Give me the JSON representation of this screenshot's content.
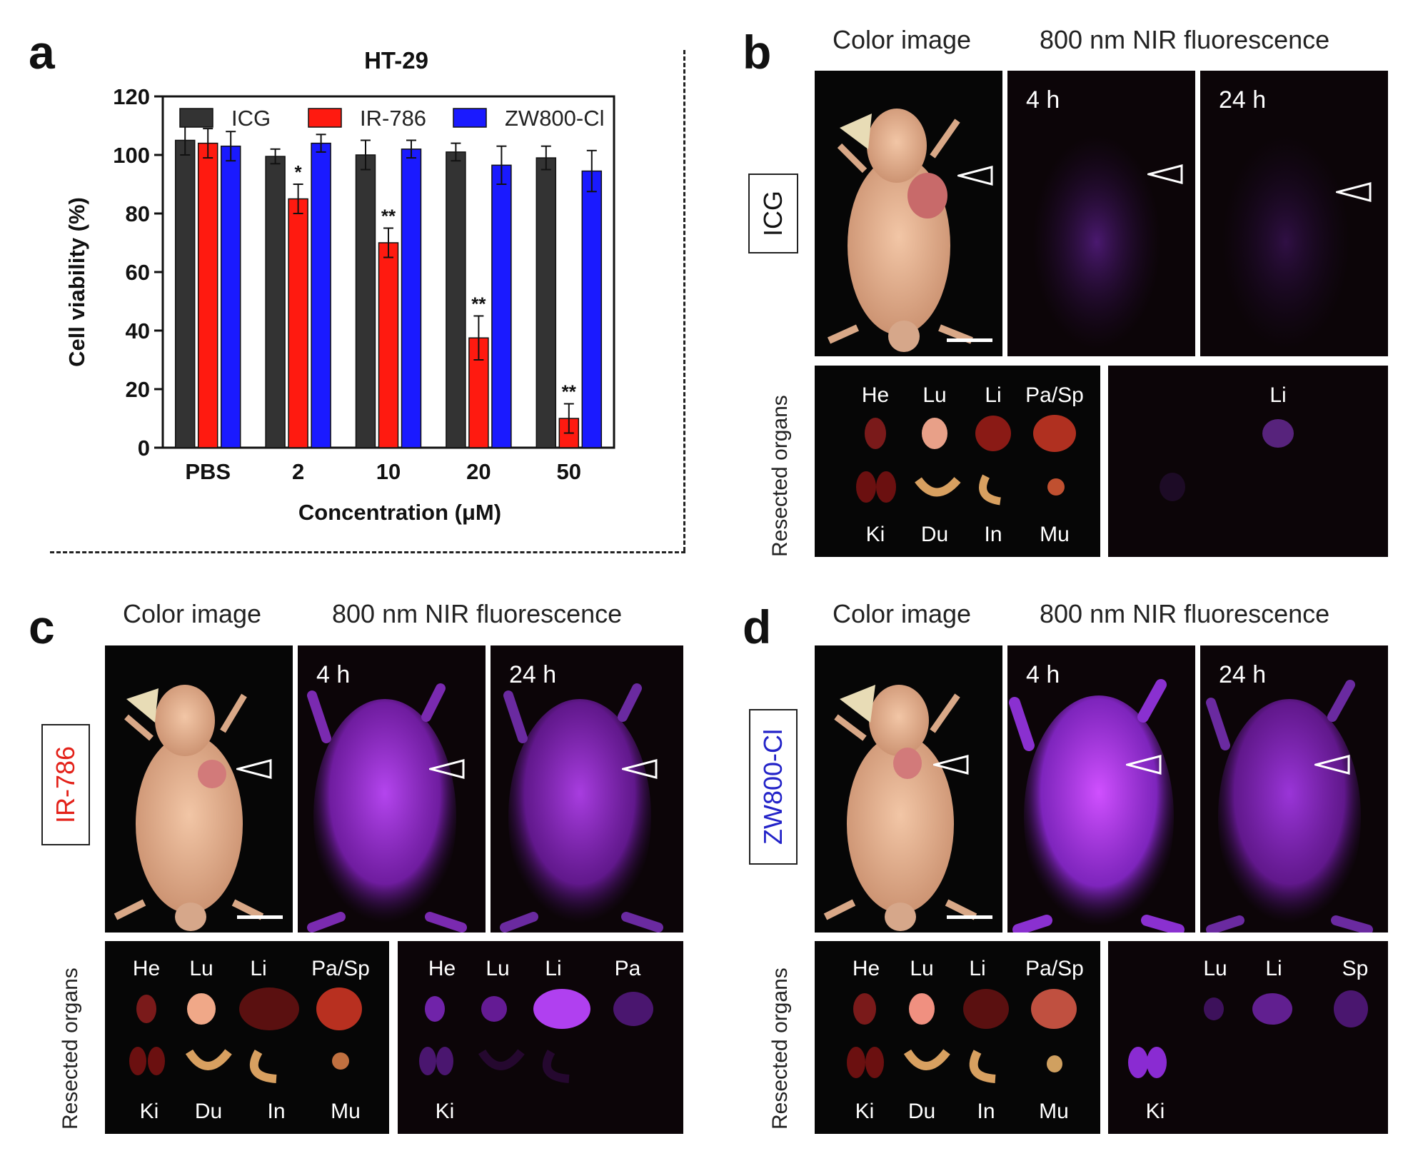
{
  "panels": {
    "a": "a",
    "b": "b",
    "c": "c",
    "d": "d"
  },
  "headers": {
    "color_image": "Color image",
    "nir": "800 nm NIR fluorescence"
  },
  "time_labels": {
    "t4": "4 h",
    "t24": "24 h"
  },
  "dyes": {
    "icg": {
      "label": "ICG",
      "color": "#111111"
    },
    "ir786": {
      "label": "IR-786",
      "color": "#e32119"
    },
    "zw800": {
      "label": "ZW800-Cl",
      "color": "#2323c8"
    }
  },
  "resected_label": "Resected organs",
  "organs_b": {
    "top": [
      "He",
      "Lu",
      "Li",
      "Pa/Sp"
    ],
    "bottom": [
      "Ki",
      "Du",
      "In",
      "Mu"
    ],
    "nir": [
      "Li"
    ]
  },
  "organs_c": {
    "top": [
      "He",
      "Lu",
      "Li",
      "Pa/Sp"
    ],
    "bottom": [
      "Ki",
      "Du",
      "In",
      "Mu"
    ],
    "nir_top": [
      "He",
      "Lu",
      "Li",
      "Pa"
    ],
    "nir_bottom": [
      "Ki"
    ]
  },
  "organs_d": {
    "top": [
      "He",
      "Lu",
      "Li",
      "Pa/Sp"
    ],
    "bottom": [
      "Ki",
      "Du",
      "In",
      "Mu"
    ],
    "nir_top": [
      "Lu",
      "Li",
      "Sp"
    ],
    "nir_bottom": [
      "Ki"
    ]
  },
  "colors": {
    "icg_bar": "#333333",
    "ir786_bar": "#ff1a10",
    "zw800_bar": "#1a1aff",
    "nir_glow": "#8a2be2"
  },
  "chart_data": {
    "type": "bar",
    "title": "HT-29",
    "xlabel": "Concentration (μM)",
    "ylabel": "Cell viability (%)",
    "ylim": [
      0,
      120
    ],
    "yticks": [
      0,
      20,
      40,
      60,
      80,
      100,
      120
    ],
    "categories": [
      "PBS",
      "2",
      "10",
      "20",
      "50"
    ],
    "legend_position": "top",
    "series": [
      {
        "name": "ICG",
        "color": "#333333",
        "values": [
          105,
          99.5,
          100,
          101,
          99
        ],
        "errors": [
          5,
          2.5,
          5,
          3,
          4
        ]
      },
      {
        "name": "IR-786",
        "color": "#ff1a10",
        "values": [
          104,
          85,
          70,
          37.5,
          10
        ],
        "errors": [
          5,
          5,
          5,
          7.5,
          5
        ]
      },
      {
        "name": "ZW800-Cl",
        "color": "#1a1aff",
        "values": [
          103,
          104,
          102,
          96.5,
          94.5
        ],
        "errors": [
          5,
          3,
          3,
          6.5,
          7
        ]
      }
    ],
    "annotations": [
      {
        "category": "2",
        "series": "IR-786",
        "text": "*"
      },
      {
        "category": "10",
        "series": "IR-786",
        "text": "**"
      },
      {
        "category": "20",
        "series": "IR-786",
        "text": "**"
      },
      {
        "category": "50",
        "series": "IR-786",
        "text": "**"
      }
    ]
  }
}
